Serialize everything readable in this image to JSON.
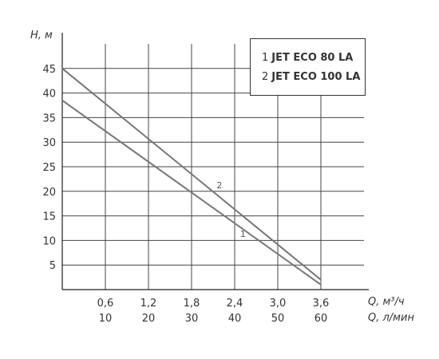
{
  "chart_data": {
    "type": "line",
    "ylabel": "H, м",
    "xlabel": "Q, м³/ч",
    "xlabel2": "Q, л/мин",
    "x_ticks": [
      "0,6",
      "1,2",
      "1,8",
      "2,4",
      "3,0",
      "3,6"
    ],
    "x_ticks2": [
      "10",
      "20",
      "30",
      "40",
      "50",
      "60"
    ],
    "y_ticks": [
      "5",
      "10",
      "15",
      "20",
      "25",
      "30",
      "35",
      "40",
      "45"
    ],
    "xlim": [
      0,
      4.2
    ],
    "ylim": [
      0,
      50
    ],
    "grid": true,
    "legend_position": "top-right",
    "series": [
      {
        "label": "1",
        "name": "JET ECO 80 LA",
        "x": [
          0,
          3.6
        ],
        "y": [
          38.5,
          1
        ],
        "color": "#777777"
      },
      {
        "label": "2",
        "name": "JET ECO 100 LA",
        "x": [
          0,
          3.6
        ],
        "y": [
          45,
          2
        ],
        "color": "#777777"
      }
    ]
  }
}
